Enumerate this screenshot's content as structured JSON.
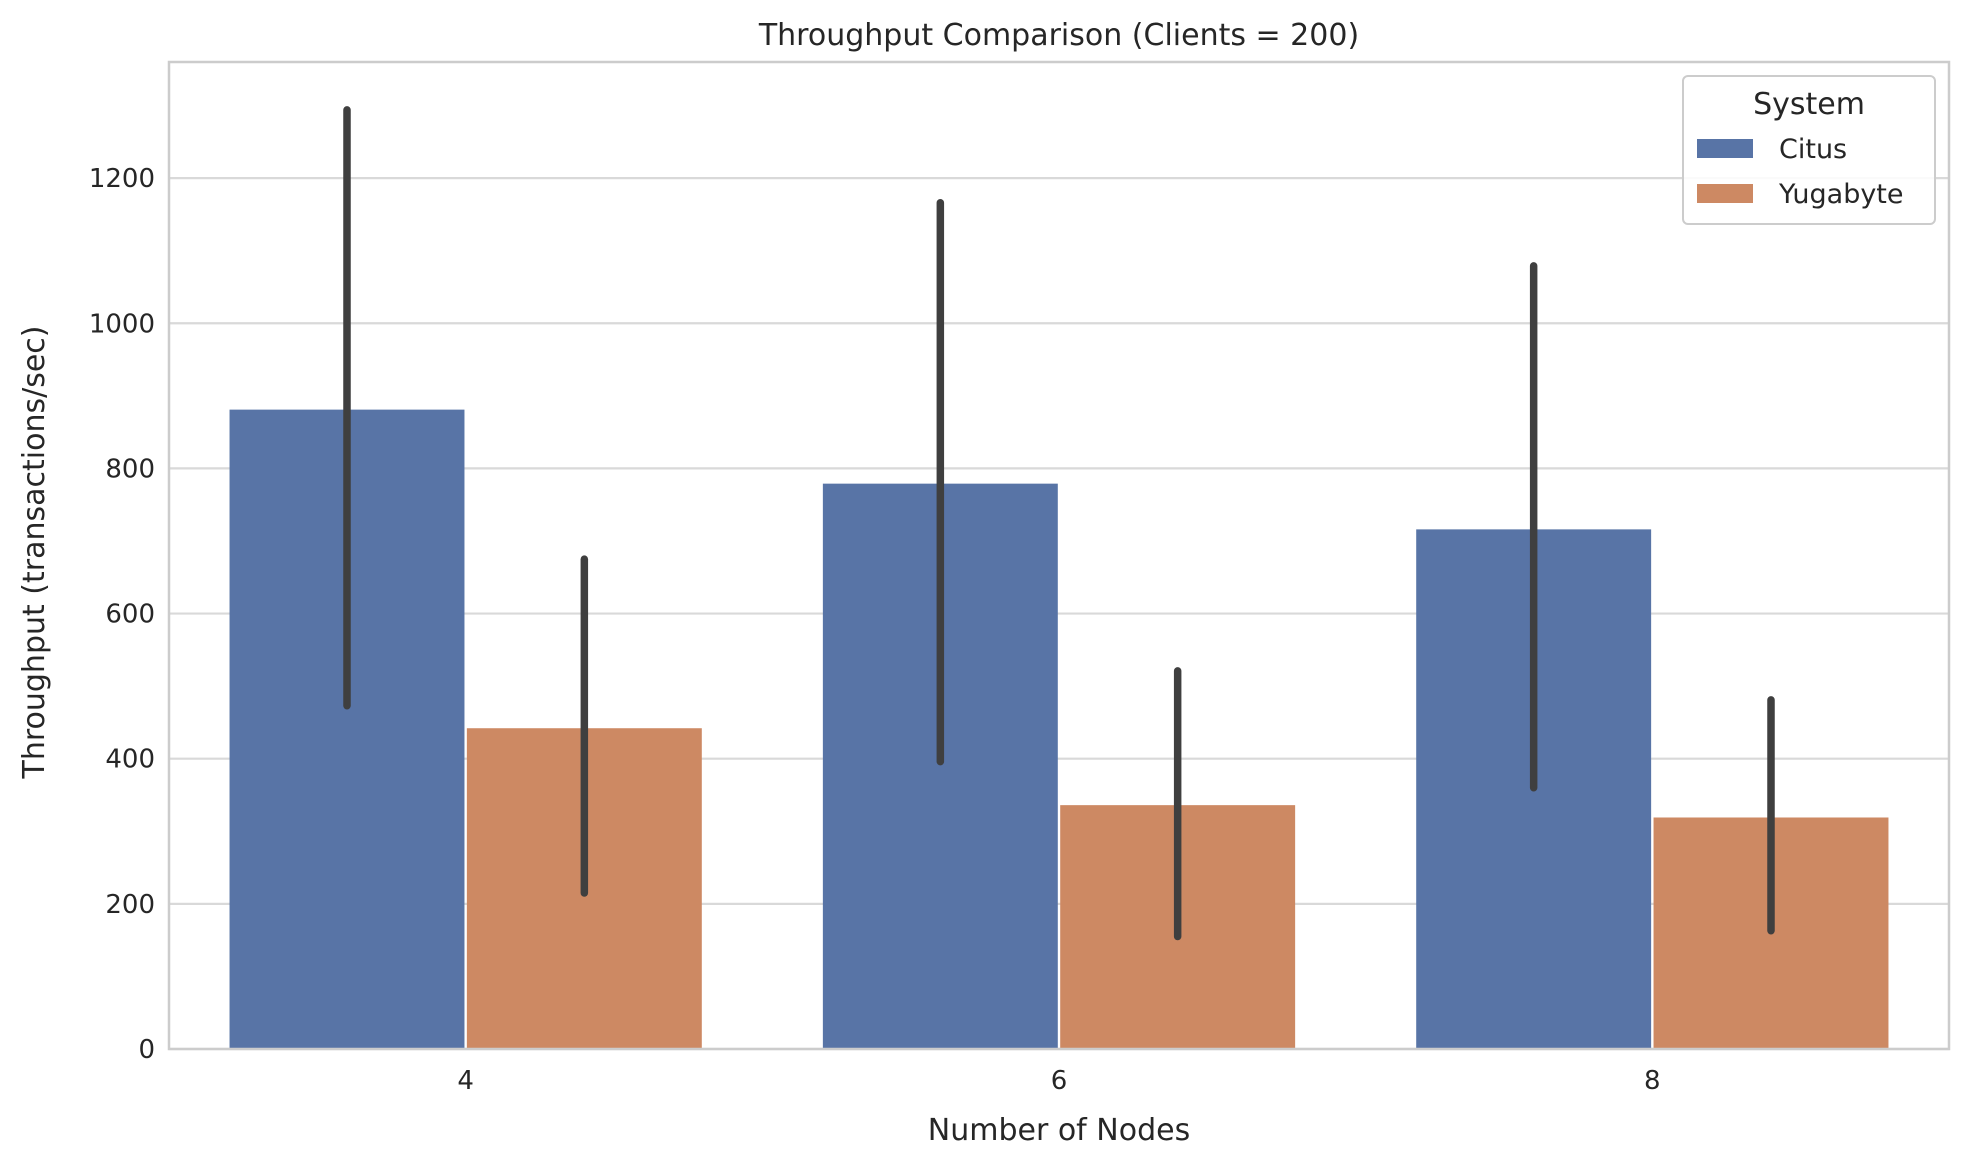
{
  "chart_data": {
    "type": "bar",
    "title": "Throughput Comparison (Clients = 200)",
    "xlabel": "Number of Nodes",
    "ylabel": "Throughput (transactions/sec)",
    "categories": [
      "4",
      "6",
      "8"
    ],
    "ylim": [
      0,
      1360
    ],
    "yticks": [
      0,
      200,
      400,
      600,
      800,
      1000,
      1200
    ],
    "grid": true,
    "legend": {
      "title": "System",
      "placement": "top-right"
    },
    "series": [
      {
        "name": "Citus",
        "color": "#5874a6",
        "values": [
          881,
          779,
          716
        ],
        "error_low": [
          473,
          396,
          360
        ],
        "error_high": [
          1294,
          1166,
          1079
        ]
      },
      {
        "name": "Yugabyte",
        "color": "#cd8963",
        "values": [
          442,
          336,
          319
        ],
        "error_low": [
          215,
          155,
          163
        ],
        "error_high": [
          675,
          521,
          481
        ]
      }
    ],
    "errorbar_color": "#3f3f3f"
  }
}
